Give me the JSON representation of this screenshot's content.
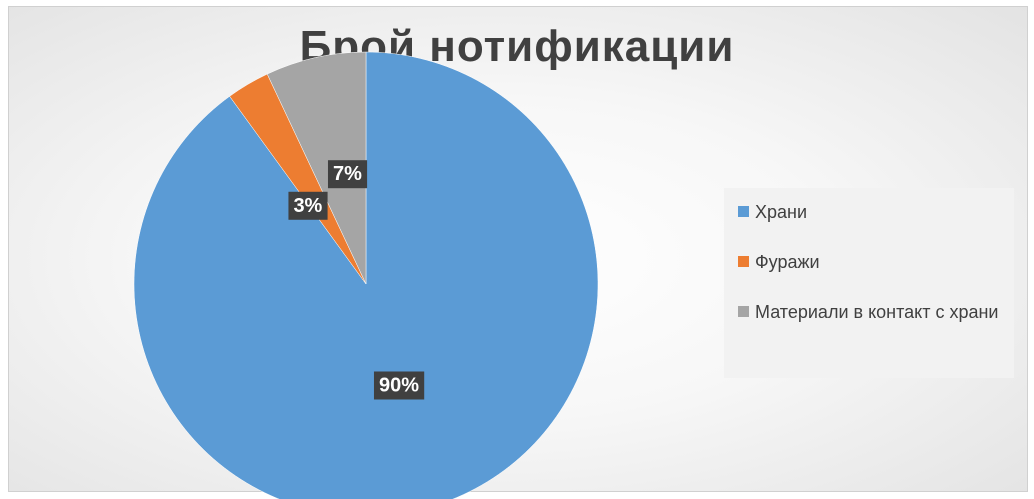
{
  "chart_data": {
    "type": "pie",
    "title": "Брой нотификации",
    "categories": [
      "Храни",
      "Фуражи",
      "Материали в контакт с храни"
    ],
    "values": [
      90,
      3,
      7
    ],
    "labels": [
      "90%",
      "3%",
      "7%"
    ],
    "colors": [
      "#5b9bd5",
      "#ed7d31",
      "#a5a5a5"
    ],
    "legend": "right"
  }
}
